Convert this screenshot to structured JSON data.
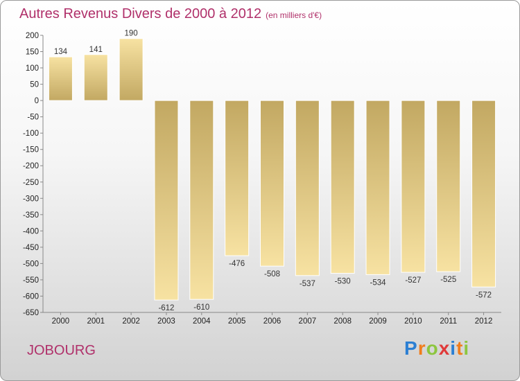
{
  "title": "Autres Revenus Divers de 2000 à 2012",
  "subtitle": "(en milliers d'€)",
  "commune": "JOBOURG",
  "logo": {
    "letters": [
      "P",
      "r",
      "o",
      "x",
      "i",
      "t",
      "i"
    ],
    "colors": [
      "#2b7fd3",
      "#f07d1c",
      "#8dc63f",
      "#e03a3a",
      "#2b7fd3",
      "#f07d1c",
      "#8dc63f"
    ]
  },
  "colors": {
    "bar_light": "#f7e2a2",
    "bar_dark": "#c2a862",
    "title": "#b0306a"
  },
  "chart_data": {
    "type": "bar",
    "categories": [
      "2000",
      "2001",
      "2002",
      "2003",
      "2004",
      "2005",
      "2006",
      "2007",
      "2008",
      "2009",
      "2010",
      "2011",
      "2012"
    ],
    "values": [
      134,
      141,
      190,
      -612,
      -610,
      -476,
      -508,
      -537,
      -530,
      -534,
      -527,
      -525,
      -572
    ],
    "title": "Autres Revenus Divers de 2000 à 2012",
    "ylim": [
      -650,
      200
    ],
    "yticks": [
      200,
      150,
      100,
      50,
      0,
      -50,
      -100,
      -150,
      -200,
      -250,
      -300,
      -350,
      -400,
      -450,
      -500,
      -550,
      -600,
      -650
    ],
    "grid": false,
    "legend": "none"
  }
}
